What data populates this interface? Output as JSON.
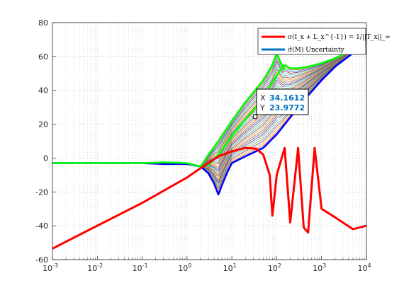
{
  "chart_data": {
    "type": "line",
    "title": "",
    "xlabel": "",
    "ylabel": "",
    "xscale": "log",
    "xlim": [
      0.001,
      10000
    ],
    "ylim": [
      -60,
      80
    ],
    "grid": "on (major and minor dotted)",
    "legend_placement": "top-right",
    "x_tick_labels": [
      {
        "base": "10",
        "exp": "-3"
      },
      {
        "base": "10",
        "exp": "-2"
      },
      {
        "base": "10",
        "exp": "-1"
      },
      {
        "base": "10",
        "exp": "0"
      },
      {
        "base": "10",
        "exp": "1"
      },
      {
        "base": "10",
        "exp": "2"
      },
      {
        "base": "10",
        "exp": "3"
      },
      {
        "base": "10",
        "exp": "4"
      }
    ],
    "y_ticks": [
      "-60",
      "-40",
      "-20",
      "0",
      "20",
      "40",
      "60",
      "80"
    ],
    "legend": [
      {
        "label": "σ(I_x + L_x^{-1}) = 1/||T_x||_∞",
        "color": "#ff0000"
      },
      {
        "label": "σ̄(M) Uncertainty",
        "color": "#0072bd"
      }
    ],
    "series": [
      {
        "name": "σ(I_x + L_x^{-1}) = 1/||T_x||_∞",
        "color": "#ff0000",
        "x": [
          0.001,
          0.01,
          0.1,
          1,
          2,
          5,
          10,
          20,
          35,
          50,
          70,
          80,
          100,
          150,
          200,
          300,
          400,
          500,
          700,
          1000,
          2000,
          5000,
          10000
        ],
        "y": [
          -53.5,
          -40,
          -26.5,
          -11.5,
          -6,
          1,
          4,
          6,
          5.5,
          2,
          -10,
          -34,
          -10,
          6,
          -38,
          6,
          -41,
          -44,
          6,
          -30,
          -35,
          -42,
          -40
        ]
      },
      {
        "name": "σ̄(M) Uncertainty",
        "color": "#0000ff",
        "x": [
          0.001,
          0.01,
          0.1,
          0.3,
          1,
          2,
          3,
          4,
          5,
          6,
          8,
          10,
          20,
          50,
          100,
          200,
          500,
          1000,
          2000,
          5000,
          10000
        ],
        "y": [
          -3,
          -3,
          -3,
          -3.5,
          -3.5,
          -5,
          -9,
          -15,
          -21.5,
          -16,
          -8,
          -3,
          1,
          6,
          14,
          24,
          37,
          46,
          54,
          62,
          67
        ]
      },
      {
        "name": "lower envelope (green)",
        "color": "#00ff00",
        "x": [
          0.001,
          0.01,
          0.1,
          0.3,
          1,
          2,
          3,
          5,
          10,
          20,
          50,
          80,
          120,
          150,
          200,
          300,
          500,
          1000,
          2000,
          5000,
          10000
        ],
        "y": [
          -3,
          -3,
          -3,
          -2.5,
          -3,
          -5,
          -4,
          2,
          13,
          23,
          35,
          45,
          52,
          55,
          53,
          53,
          54,
          56,
          59,
          64,
          69
        ]
      },
      {
        "name": "upper envelope (green)",
        "color": "#00ff00",
        "x": [
          1,
          2,
          3,
          5,
          10,
          20,
          50,
          80,
          100,
          120,
          150
        ],
        "y": [
          -3,
          -5,
          2,
          10,
          22,
          33,
          46,
          55,
          62,
          57,
          52
        ]
      }
    ],
    "annotations": [
      {
        "type": "datatip",
        "x_label": "X",
        "y_label": "Y",
        "x_value": "34.1612",
        "y_value": "23.9772",
        "x": 34.1612,
        "y": 23.9772
      }
    ]
  }
}
